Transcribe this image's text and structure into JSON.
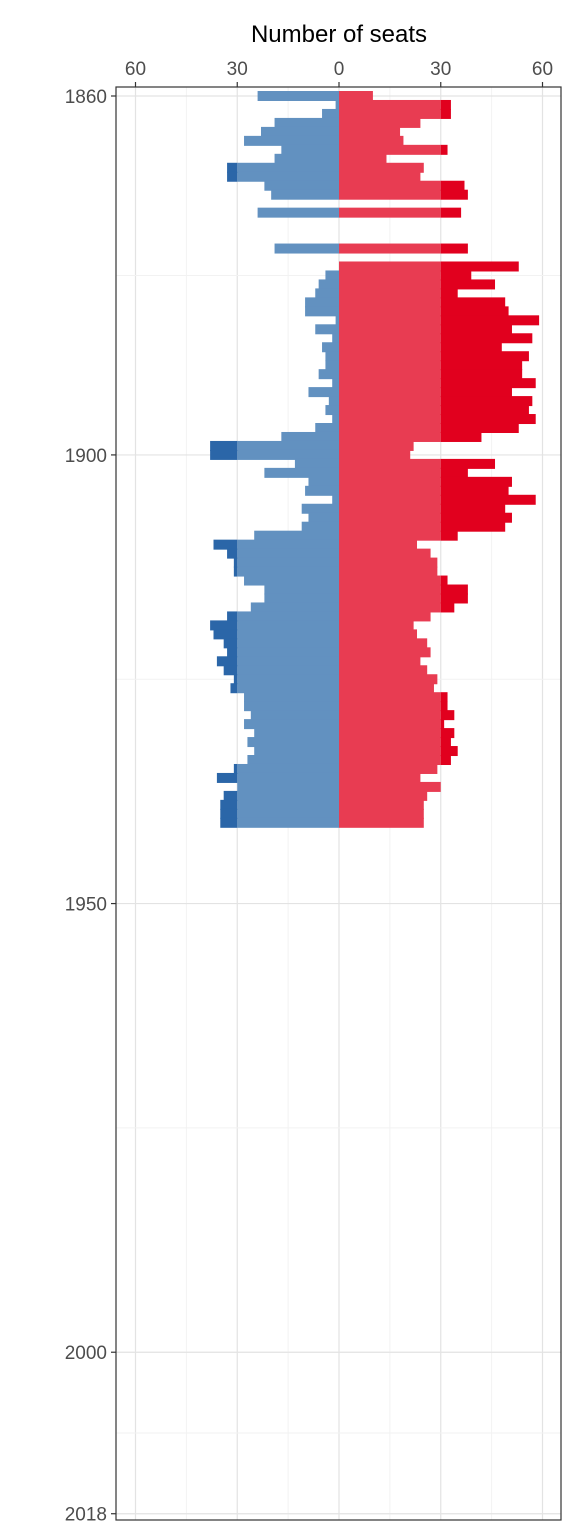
{
  "chart_data": {
    "type": "bar",
    "orientation": "horizontal-diverging",
    "title": "",
    "xlabel": "Number of seats",
    "ylabel": "",
    "x_ticks": [
      60,
      30,
      0,
      30,
      60
    ],
    "x_ticks_values": [
      -60,
      -30,
      0,
      30,
      60
    ],
    "xlim": [
      -65,
      62
    ],
    "y_ticks": [
      1860,
      1900,
      1950,
      2000,
      2018
    ],
    "ylim": [
      2018.5,
      1859.5
    ],
    "grid": true,
    "legend": "none",
    "colors": {
      "left_light": "#6291c0",
      "left_dark": "#2b66a8",
      "right_light": "#e83c52",
      "right_dark": "#e1001e",
      "grid_major": "#e3e3e3",
      "grid_minor": "#f2f2f2",
      "panel_border": "#333333"
    },
    "series": [
      {
        "name": "",
        "side": "left",
        "values": [
          {
            "year": 1860,
            "value": 24
          },
          {
            "year": 1861,
            "value": 1
          },
          {
            "year": 1862,
            "value": 5
          },
          {
            "year": 1863,
            "value": 19
          },
          {
            "year": 1864,
            "value": 23
          },
          {
            "year": 1865,
            "value": 28
          },
          {
            "year": 1866,
            "value": 17
          },
          {
            "year": 1867,
            "value": 19
          },
          {
            "year": 1868,
            "value": 33
          },
          {
            "year": 1869,
            "value": 33
          },
          {
            "year": 1870,
            "value": 22
          },
          {
            "year": 1871,
            "value": 20
          },
          {
            "year": 1873,
            "value": 24
          },
          {
            "year": 1877,
            "value": 19
          },
          {
            "year": 1879,
            "value": 0
          },
          {
            "year": 1880,
            "value": 4
          },
          {
            "year": 1881,
            "value": 6
          },
          {
            "year": 1882,
            "value": 7
          },
          {
            "year": 1883,
            "value": 10
          },
          {
            "year": 1884,
            "value": 10
          },
          {
            "year": 1885,
            "value": 1
          },
          {
            "year": 1886,
            "value": 7
          },
          {
            "year": 1887,
            "value": 2
          },
          {
            "year": 1888,
            "value": 5
          },
          {
            "year": 1889,
            "value": 4
          },
          {
            "year": 1890,
            "value": 4
          },
          {
            "year": 1891,
            "value": 6
          },
          {
            "year": 1892,
            "value": 2
          },
          {
            "year": 1893,
            "value": 9
          },
          {
            "year": 1894,
            "value": 3
          },
          {
            "year": 1895,
            "value": 4
          },
          {
            "year": 1896,
            "value": 2
          },
          {
            "year": 1897,
            "value": 7
          },
          {
            "year": 1898,
            "value": 17
          },
          {
            "year": 1899,
            "value": 38
          },
          {
            "year": 1900,
            "value": 38
          },
          {
            "year": 1901,
            "value": 13
          },
          {
            "year": 1902,
            "value": 22
          },
          {
            "year": 1903,
            "value": 9
          },
          {
            "year": 1904,
            "value": 10
          },
          {
            "year": 1905,
            "value": 2
          },
          {
            "year": 1906,
            "value": 11
          },
          {
            "year": 1907,
            "value": 9
          },
          {
            "year": 1908,
            "value": 11
          },
          {
            "year": 1909,
            "value": 25
          },
          {
            "year": 1910,
            "value": 37
          },
          {
            "year": 1911,
            "value": 33
          },
          {
            "year": 1912,
            "value": 31
          },
          {
            "year": 1913,
            "value": 31
          },
          {
            "year": 1914,
            "value": 28
          },
          {
            "year": 1915,
            "value": 22
          },
          {
            "year": 1916,
            "value": 22
          },
          {
            "year": 1917,
            "value": 26
          },
          {
            "year": 1918,
            "value": 33
          },
          {
            "year": 1919,
            "value": 38
          },
          {
            "year": 1920,
            "value": 37
          },
          {
            "year": 1921,
            "value": 34
          },
          {
            "year": 1922,
            "value": 33
          },
          {
            "year": 1923,
            "value": 36
          },
          {
            "year": 1924,
            "value": 34
          },
          {
            "year": 1925,
            "value": 31
          },
          {
            "year": 1926,
            "value": 32
          },
          {
            "year": 1927,
            "value": 28
          },
          {
            "year": 1928,
            "value": 28
          },
          {
            "year": 1929,
            "value": 26
          },
          {
            "year": 1930,
            "value": 28
          },
          {
            "year": 1931,
            "value": 25
          },
          {
            "year": 1932,
            "value": 27
          },
          {
            "year": 1933,
            "value": 25
          },
          {
            "year": 1934,
            "value": 27
          },
          {
            "year": 1935,
            "value": 31
          },
          {
            "year": 1936,
            "value": 36
          },
          {
            "year": 1937,
            "value": 30
          },
          {
            "year": 1938,
            "value": 34
          },
          {
            "year": 1939,
            "value": 35
          },
          {
            "year": 1940,
            "value": 35
          },
          {
            "year": 1941,
            "value": 35
          }
        ]
      },
      {
        "name": "",
        "side": "right",
        "values": [
          {
            "year": 1860,
            "value": 10
          },
          {
            "year": 1861,
            "value": 33
          },
          {
            "year": 1862,
            "value": 33
          },
          {
            "year": 1863,
            "value": 24
          },
          {
            "year": 1864,
            "value": 18
          },
          {
            "year": 1865,
            "value": 19
          },
          {
            "year": 1866,
            "value": 32
          },
          {
            "year": 1867,
            "value": 14
          },
          {
            "year": 1868,
            "value": 25
          },
          {
            "year": 1869,
            "value": 24
          },
          {
            "year": 1870,
            "value": 37
          },
          {
            "year": 1871,
            "value": 38
          },
          {
            "year": 1873,
            "value": 36
          },
          {
            "year": 1877,
            "value": 38
          },
          {
            "year": 1879,
            "value": 53
          },
          {
            "year": 1880,
            "value": 39
          },
          {
            "year": 1881,
            "value": 46
          },
          {
            "year": 1882,
            "value": 35
          },
          {
            "year": 1883,
            "value": 49
          },
          {
            "year": 1884,
            "value": 50
          },
          {
            "year": 1885,
            "value": 59
          },
          {
            "year": 1886,
            "value": 51
          },
          {
            "year": 1887,
            "value": 57
          },
          {
            "year": 1888,
            "value": 48
          },
          {
            "year": 1889,
            "value": 56
          },
          {
            "year": 1890,
            "value": 54
          },
          {
            "year": 1891,
            "value": 54
          },
          {
            "year": 1892,
            "value": 58
          },
          {
            "year": 1893,
            "value": 51
          },
          {
            "year": 1894,
            "value": 57
          },
          {
            "year": 1895,
            "value": 56
          },
          {
            "year": 1896,
            "value": 58
          },
          {
            "year": 1897,
            "value": 53
          },
          {
            "year": 1898,
            "value": 42
          },
          {
            "year": 1899,
            "value": 22
          },
          {
            "year": 1900,
            "value": 21
          },
          {
            "year": 1901,
            "value": 46
          },
          {
            "year": 1902,
            "value": 38
          },
          {
            "year": 1903,
            "value": 51
          },
          {
            "year": 1904,
            "value": 50
          },
          {
            "year": 1905,
            "value": 58
          },
          {
            "year": 1906,
            "value": 49
          },
          {
            "year": 1907,
            "value": 51
          },
          {
            "year": 1908,
            "value": 49
          },
          {
            "year": 1909,
            "value": 35
          },
          {
            "year": 1910,
            "value": 23
          },
          {
            "year": 1911,
            "value": 27
          },
          {
            "year": 1912,
            "value": 29
          },
          {
            "year": 1913,
            "value": 29
          },
          {
            "year": 1914,
            "value": 32
          },
          {
            "year": 1915,
            "value": 38
          },
          {
            "year": 1916,
            "value": 38
          },
          {
            "year": 1917,
            "value": 34
          },
          {
            "year": 1918,
            "value": 27
          },
          {
            "year": 1919,
            "value": 22
          },
          {
            "year": 1920,
            "value": 23
          },
          {
            "year": 1921,
            "value": 26
          },
          {
            "year": 1922,
            "value": 27
          },
          {
            "year": 1923,
            "value": 24
          },
          {
            "year": 1924,
            "value": 26
          },
          {
            "year": 1925,
            "value": 29
          },
          {
            "year": 1926,
            "value": 28
          },
          {
            "year": 1927,
            "value": 32
          },
          {
            "year": 1928,
            "value": 32
          },
          {
            "year": 1929,
            "value": 34
          },
          {
            "year": 1930,
            "value": 31
          },
          {
            "year": 1931,
            "value": 34
          },
          {
            "year": 1932,
            "value": 33
          },
          {
            "year": 1933,
            "value": 35
          },
          {
            "year": 1934,
            "value": 33
          },
          {
            "year": 1935,
            "value": 29
          },
          {
            "year": 1936,
            "value": 24
          },
          {
            "year": 1937,
            "value": 30
          },
          {
            "year": 1938,
            "value": 26
          },
          {
            "year": 1939,
            "value": 25
          },
          {
            "year": 1940,
            "value": 25
          },
          {
            "year": 1941,
            "value": 25
          }
        ]
      }
    ],
    "threshold": 30
  }
}
